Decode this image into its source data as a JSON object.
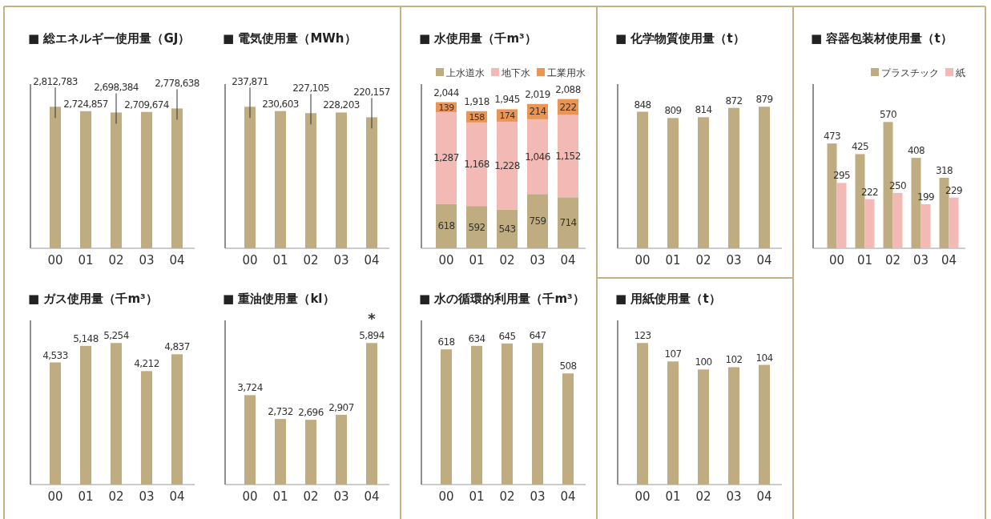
{
  "chart_data": [
    {
      "type": "bar",
      "title": "■ 総エネルギー使用量（GJ）",
      "categories": [
        "00",
        "01",
        "02",
        "03",
        "04"
      ],
      "series": [
        {
          "color": "#bfad81",
          "values": [
            2812783,
            2724857,
            2698384,
            2709674,
            2778638
          ],
          "value_labels": [
            "2,812,783",
            "2,724,857",
            "2,698,384",
            "2,709,674",
            "2,778,638"
          ]
        }
      ]
    },
    {
      "type": "bar",
      "title": "■ 電気使用量（MWh）",
      "categories": [
        "00",
        "01",
        "02",
        "03",
        "04"
      ],
      "series": [
        {
          "color": "#bfad81",
          "values": [
            237871,
            230603,
            227105,
            228203,
            220157
          ],
          "value_labels": [
            "237,871",
            "230,603",
            "227,105",
            "228,203",
            "220,157"
          ]
        }
      ]
    },
    {
      "type": "bar",
      "title": "■ 水使用量（千m³）",
      "categories": [
        "00",
        "01",
        "02",
        "03",
        "04"
      ],
      "stacked": true,
      "legend": "top right",
      "totals": [
        "2,044",
        "1,918",
        "1,945",
        "2,019",
        "2,088"
      ],
      "series": [
        {
          "name": "上水道水",
          "color": "#bfad81",
          "values": [
            618,
            592,
            543,
            759,
            714
          ],
          "value_labels": [
            "618",
            "592",
            "543",
            "759",
            "714"
          ]
        },
        {
          "name": "地下水",
          "color": "#f2b9b5",
          "values": [
            1287,
            1168,
            1228,
            1046,
            1152
          ],
          "value_labels": [
            "1,287",
            "1,168",
            "1,228",
            "1,046",
            "1,152"
          ]
        },
        {
          "name": "工業用水",
          "color": "#e99556",
          "values": [
            139,
            158,
            174,
            214,
            222
          ],
          "value_labels": [
            "139",
            "158",
            "174",
            "214",
            "222"
          ]
        }
      ]
    },
    {
      "type": "bar",
      "title": "■ 化学物質使用量（t）",
      "categories": [
        "00",
        "01",
        "02",
        "03",
        "04"
      ],
      "data_labels": true,
      "series": [
        {
          "color": "#bfad81",
          "values": [
            848,
            809,
            814,
            872,
            879
          ]
        }
      ]
    },
    {
      "type": "bar",
      "title": "■ 容器包装材使用量（t）",
      "categories": [
        "00",
        "01",
        "02",
        "03",
        "04"
      ],
      "data_labels": true,
      "legend": "top right",
      "series": [
        {
          "name": "プラスチック",
          "color": "#bfad81",
          "values": [
            473,
            425,
            570,
            408,
            318
          ]
        },
        {
          "name": "紙",
          "color": "#f2b9b5",
          "values": [
            295,
            222,
            250,
            199,
            229
          ]
        }
      ]
    },
    {
      "type": "bar",
      "title": "■ ガス使用量（千m³）",
      "categories": [
        "00",
        "01",
        "02",
        "03",
        "04"
      ],
      "series": [
        {
          "color": "#bfad81",
          "values": [
            4533,
            5148,
            5254,
            4212,
            4837
          ],
          "value_labels": [
            "4,533",
            "5,148",
            "5,254",
            "4,212",
            "4,837"
          ]
        }
      ]
    },
    {
      "type": "bar",
      "title": "■ 重油使用量（kl）",
      "categories": [
        "00",
        "01",
        "02",
        "03",
        "04"
      ],
      "annotations": [
        {
          "text": "*",
          "x": "04",
          "y": 5894
        }
      ],
      "series": [
        {
          "color": "#bfad81",
          "values": [
            3724,
            2732,
            2696,
            2907,
            5894
          ],
          "value_labels": [
            "3,724",
            "2,732",
            "2,696",
            "2,907",
            "5,894"
          ]
        }
      ]
    },
    {
      "type": "bar",
      "title": "■ 水の循環的利用量（千m³）",
      "categories": [
        "00",
        "01",
        "02",
        "03",
        "04"
      ],
      "data_labels": true,
      "series": [
        {
          "color": "#bfad81",
          "values": [
            618,
            634,
            645,
            647,
            508
          ]
        }
      ]
    },
    {
      "type": "bar",
      "title": "■ 用紙使用量（t）",
      "categories": [
        "00",
        "01",
        "02",
        "03",
        "04"
      ],
      "data_labels": true,
      "series": [
        {
          "color": "#bfad81",
          "values": [
            123,
            107,
            100,
            102,
            104
          ]
        }
      ]
    }
  ]
}
